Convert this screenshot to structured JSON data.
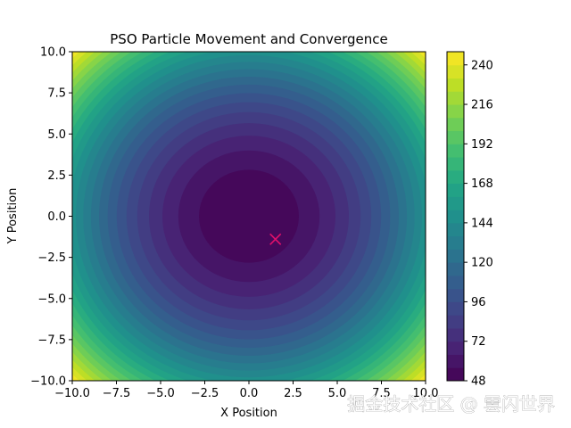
{
  "chart_data": {
    "type": "heatmap",
    "title": "PSO Particle Movement and Convergence",
    "xlabel": "X Position",
    "ylabel": "Y Position",
    "xlim": [
      -10,
      10
    ],
    "ylim": [
      -10,
      10
    ],
    "x_ticks": [
      -10.0,
      -7.5,
      -5.0,
      -2.5,
      0.0,
      2.5,
      5.0,
      7.5,
      10.0
    ],
    "x_tick_labels": [
      "−10.0",
      "−7.5",
      "−5.0",
      "−2.5",
      "0.0",
      "2.5",
      "5.0",
      "7.5",
      "10.0"
    ],
    "y_ticks": [
      -10.0,
      -7.5,
      -5.0,
      -2.5,
      0.0,
      2.5,
      5.0,
      7.5,
      10.0
    ],
    "y_tick_labels": [
      "−10.0",
      "−7.5",
      "−5.0",
      "−2.5",
      "0.0",
      "2.5",
      "5.0",
      "7.5",
      "10.0"
    ],
    "surface": {
      "center": [
        0,
        0
      ],
      "min_value": 48,
      "max_value": 248,
      "contour_step": 8
    },
    "colorbar": {
      "colormap": "viridis",
      "range": [
        48,
        248
      ],
      "ticks": [
        48,
        72,
        96,
        120,
        144,
        168,
        192,
        216,
        240
      ],
      "tick_labels": [
        "48",
        "72",
        "96",
        "120",
        "144",
        "168",
        "192",
        "216",
        "240"
      ]
    },
    "best_position": {
      "marker": "x",
      "color": "#e0106a",
      "x": 1.5,
      "y": -1.4
    },
    "grid": false
  },
  "watermark": {
    "text": "掘金技术社区 @ 雲闪世界"
  }
}
